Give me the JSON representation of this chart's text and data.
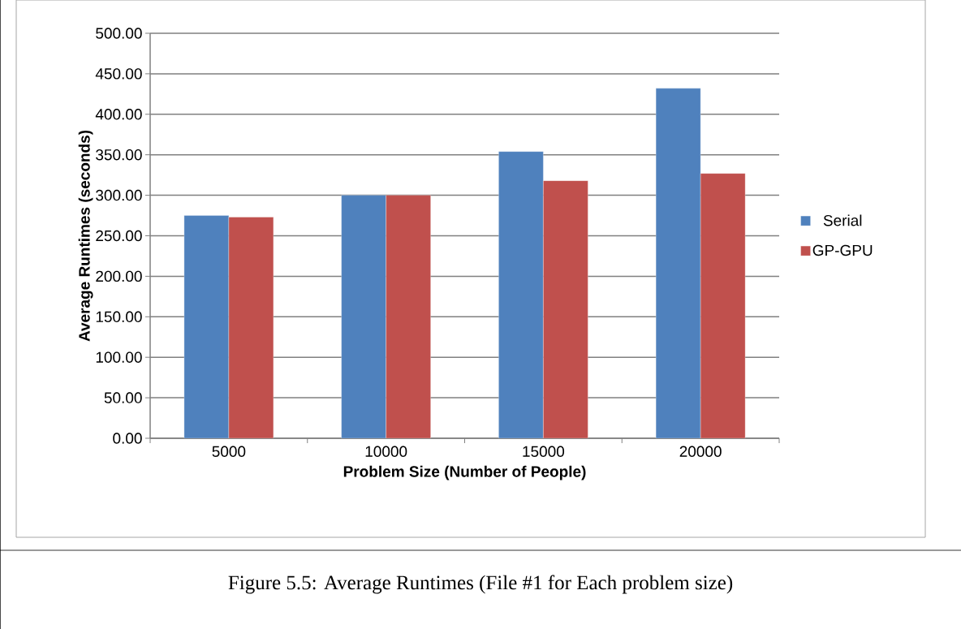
{
  "chart_data": {
    "type": "bar",
    "categories": [
      "5000",
      "10000",
      "15000",
      "20000"
    ],
    "series": [
      {
        "name": "Serial",
        "color": "#4f81bd",
        "values": [
          275,
          300,
          354,
          432
        ]
      },
      {
        "name": "GP-GPU",
        "color": "#c0504d",
        "values": [
          273,
          300,
          318,
          327
        ]
      }
    ],
    "xlabel": "Problem Size (Number of People)",
    "ylabel": "Average Runtimes (seconds)",
    "ylim": [
      0,
      500
    ],
    "yticks": [
      {
        "value": 0,
        "label": "0.00"
      },
      {
        "value": 50,
        "label": "50.00"
      },
      {
        "value": 100,
        "label": "100.00"
      },
      {
        "value": 150,
        "label": "150.00"
      },
      {
        "value": 200,
        "label": "200.00"
      },
      {
        "value": 250,
        "label": "250.00"
      },
      {
        "value": 300,
        "label": "300.00"
      },
      {
        "value": 350,
        "label": "350.00"
      },
      {
        "value": 400,
        "label": "400.00"
      },
      {
        "value": 450,
        "label": "450.00"
      },
      {
        "value": 500,
        "label": "500.00"
      }
    ],
    "grid": "y",
    "legend": "right",
    "annotations": [
      "Figure 5.5: Average Runtimes (File #1 for Each problem size)"
    ]
  }
}
